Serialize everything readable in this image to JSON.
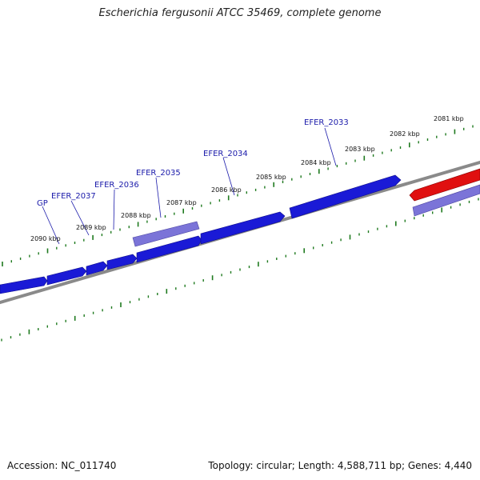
{
  "header": {
    "title": "Escherichia fergusonii ATCC 35469, complete genome"
  },
  "footer": {
    "accession": "Accession: NC_011740",
    "summary": "Topology: circular; Length: 4,588,711 bp; Genes: 4,440"
  },
  "colors": {
    "forward_gene": "#1a1ad6",
    "rna_gene": "#7b74d8",
    "reverse_gene": "#e01010",
    "backbone": "#8a8a8a",
    "ruler": "#1f7a1f",
    "label": "#1a1aaa"
  },
  "ruler": {
    "ticks": [
      {
        "label": "2081 kbp"
      },
      {
        "label": "2082 kbp"
      },
      {
        "label": "2083 kbp"
      },
      {
        "label": "2084 kbp"
      },
      {
        "label": "2085 kbp"
      },
      {
        "label": "2086 kbp"
      },
      {
        "label": "2087 kbp"
      },
      {
        "label": "2088 kbp"
      },
      {
        "label": "2089 kbp"
      },
      {
        "label": "2090 kbp"
      }
    ]
  },
  "gene_labels": [
    {
      "label": "EFER_2033"
    },
    {
      "label": "EFER_2034"
    },
    {
      "label": "EFER_2035"
    },
    {
      "label": "EFER_2036"
    },
    {
      "label": "EFER_2037"
    },
    {
      "label": "GP"
    }
  ]
}
